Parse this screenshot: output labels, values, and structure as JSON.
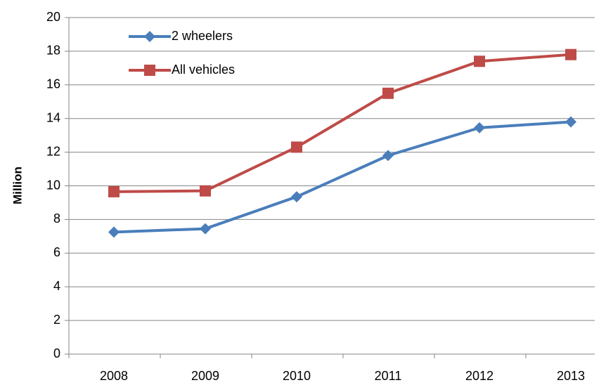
{
  "chart_data": {
    "type": "line",
    "y_label": "Million",
    "categories": [
      "2008",
      "2009",
      "2010",
      "2011",
      "2012",
      "2013"
    ],
    "series": [
      {
        "name": "2 wheelers",
        "color": "#4a7ebb",
        "marker": "diamond",
        "values": [
          7.25,
          7.45,
          9.35,
          11.8,
          13.45,
          13.8
        ]
      },
      {
        "name": "All vehicles",
        "color": "#be4b48",
        "marker": "square",
        "values": [
          9.65,
          9.7,
          12.3,
          15.5,
          17.4,
          17.8
        ]
      }
    ],
    "ylim": [
      0,
      20
    ],
    "yticks": [
      0,
      2,
      4,
      6,
      8,
      10,
      12,
      14,
      16,
      18,
      20
    ],
    "grid": true,
    "legend": "top-left"
  }
}
